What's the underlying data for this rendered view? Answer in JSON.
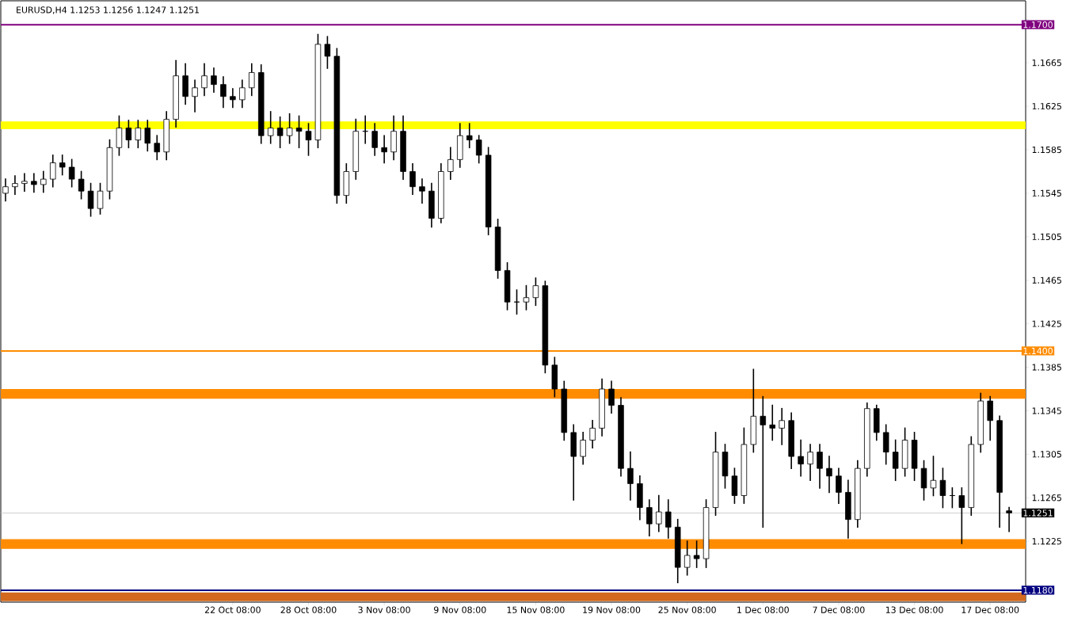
{
  "chart_data": {
    "type": "candlestick",
    "title": "EURUSD,H4  1.1253 1.1256 1.1247 1.1251",
    "categories": [
      null,
      null,
      null,
      null,
      null,
      null,
      null,
      null,
      null,
      null,
      null,
      null,
      null,
      null,
      null,
      null,
      null,
      null,
      null,
      null,
      null,
      null,
      null,
      null,
      "22 Oct 08:00",
      null,
      null,
      null,
      null,
      null,
      null,
      null,
      "28 Oct 08:00",
      null,
      null,
      null,
      null,
      null,
      null,
      null,
      "3 Nov 08:00",
      null,
      null,
      null,
      null,
      null,
      null,
      null,
      "9 Nov 08:00",
      null,
      null,
      null,
      null,
      null,
      null,
      null,
      "15 Nov 08:00",
      null,
      null,
      null,
      null,
      null,
      null,
      null,
      "19 Nov 08:00",
      null,
      null,
      null,
      null,
      null,
      null,
      null,
      "25 Nov 08:00",
      null,
      null,
      null,
      null,
      null,
      null,
      null,
      "1 Dec 08:00",
      null,
      null,
      null,
      null,
      null,
      null,
      null,
      "7 Dec 08:00",
      null,
      null,
      null,
      null,
      null,
      null,
      null,
      "13 Dec 08:00",
      null,
      null,
      null,
      null,
      null,
      null,
      null,
      "17 Dec 08:00",
      null,
      null
    ],
    "ohlc": [
      [
        1.1545,
        1.1558,
        1.1538,
        1.1551
      ],
      [
        1.1551,
        1.1561,
        1.1544,
        1.1554
      ],
      [
        1.1554,
        1.1563,
        1.1547,
        1.1556
      ],
      [
        1.1556,
        1.1563,
        1.1546,
        1.1553
      ],
      [
        1.1553,
        1.1565,
        1.1546,
        1.1558
      ],
      [
        1.1558,
        1.158,
        1.1551,
        1.1573
      ],
      [
        1.1573,
        1.158,
        1.1562,
        1.1569
      ],
      [
        1.1569,
        1.1576,
        1.1551,
        1.1558
      ],
      [
        1.1558,
        1.1565,
        1.154,
        1.1547
      ],
      [
        1.1547,
        1.1554,
        1.1524,
        1.1531
      ],
      [
        1.1531,
        1.1554,
        1.1526,
        1.1547
      ],
      [
        1.1547,
        1.1594,
        1.154,
        1.1587
      ],
      [
        1.1587,
        1.1616,
        1.158,
        1.1605
      ],
      [
        1.1605,
        1.1612,
        1.1587,
        1.1594
      ],
      [
        1.1594,
        1.1612,
        1.1587,
        1.1605
      ],
      [
        1.1605,
        1.1612,
        1.1584,
        1.1591
      ],
      [
        1.1591,
        1.1598,
        1.1576,
        1.1583
      ],
      [
        1.1583,
        1.162,
        1.1576,
        1.1613
      ],
      [
        1.1613,
        1.1667,
        1.1606,
        1.1653
      ],
      [
        1.1653,
        1.1664,
        1.1627,
        1.1634
      ],
      [
        1.1634,
        1.1649,
        1.162,
        1.1642
      ],
      [
        1.1642,
        1.1664,
        1.1635,
        1.1653
      ],
      [
        1.1653,
        1.166,
        1.1638,
        1.1645
      ],
      [
        1.1645,
        1.1652,
        1.1624,
        1.1634
      ],
      [
        1.1634,
        1.1641,
        1.1624,
        1.1631
      ],
      [
        1.1631,
        1.1649,
        1.1624,
        1.1642
      ],
      [
        1.1642,
        1.1664,
        1.1635,
        1.1656
      ],
      [
        1.1656,
        1.1663,
        1.1591,
        1.1598
      ],
      [
        1.1598,
        1.162,
        1.1591,
        1.1605
      ],
      [
        1.1605,
        1.1615,
        1.1587,
        1.1598
      ],
      [
        1.1598,
        1.1618,
        1.1591,
        1.1605
      ],
      [
        1.1605,
        1.1616,
        1.1587,
        1.1602
      ],
      [
        1.1602,
        1.1609,
        1.158,
        1.1594
      ],
      [
        1.1594,
        1.1691,
        1.1587,
        1.1682
      ],
      [
        1.1682,
        1.1689,
        1.166,
        1.1671
      ],
      [
        1.1671,
        1.1678,
        1.1536,
        1.1543
      ],
      [
        1.1543,
        1.1572,
        1.1536,
        1.1565
      ],
      [
        1.1565,
        1.1613,
        1.1558,
        1.1602
      ],
      [
        1.1602,
        1.1616,
        1.1591,
        1.1602
      ],
      [
        1.1602,
        1.1609,
        1.158,
        1.1587
      ],
      [
        1.1587,
        1.1598,
        1.1573,
        1.1583
      ],
      [
        1.1583,
        1.1616,
        1.1576,
        1.1602
      ],
      [
        1.1602,
        1.1616,
        1.1558,
        1.1565
      ],
      [
        1.1565,
        1.1572,
        1.1544,
        1.1551
      ],
      [
        1.1551,
        1.1558,
        1.1536,
        1.1547
      ],
      [
        1.1547,
        1.1554,
        1.1514,
        1.1522
      ],
      [
        1.1522,
        1.1572,
        1.1518,
        1.1565
      ],
      [
        1.1565,
        1.1587,
        1.1558,
        1.1576
      ],
      [
        1.1576,
        1.1609,
        1.1569,
        1.1598
      ],
      [
        1.1598,
        1.1609,
        1.1587,
        1.1594
      ],
      [
        1.1594,
        1.1598,
        1.1573,
        1.158
      ],
      [
        1.158,
        1.1587,
        1.1507,
        1.1514
      ],
      [
        1.1514,
        1.1521,
        1.1467,
        1.1474
      ],
      [
        1.1474,
        1.1481,
        1.1438,
        1.1445
      ],
      [
        1.1445,
        1.1456,
        1.1434,
        1.1445
      ],
      [
        1.1445,
        1.146,
        1.1438,
        1.1449
      ],
      [
        1.1449,
        1.1467,
        1.1442,
        1.146
      ],
      [
        1.146,
        1.1464,
        1.138,
        1.1387
      ],
      [
        1.1387,
        1.1394,
        1.1358,
        1.1365
      ],
      [
        1.1365,
        1.1372,
        1.1318,
        1.1325
      ],
      [
        1.1325,
        1.1332,
        1.1263,
        1.1303
      ],
      [
        1.1303,
        1.1325,
        1.1296,
        1.1318
      ],
      [
        1.1318,
        1.1336,
        1.1311,
        1.1329
      ],
      [
        1.1329,
        1.1374,
        1.1322,
        1.1365
      ],
      [
        1.1365,
        1.1372,
        1.1343,
        1.135
      ],
      [
        1.135,
        1.1357,
        1.1285,
        1.1292
      ],
      [
        1.1292,
        1.1307,
        1.1263,
        1.1278
      ],
      [
        1.1278,
        1.1285,
        1.1245,
        1.1256
      ],
      [
        1.1256,
        1.1263,
        1.123,
        1.1241
      ],
      [
        1.1241,
        1.1267,
        1.1234,
        1.1252
      ],
      [
        1.1252,
        1.1263,
        1.1228,
        1.1238
      ],
      [
        1.1238,
        1.1245,
        1.1187,
        1.1201
      ],
      [
        1.1201,
        1.1225,
        1.1194,
        1.1212
      ],
      [
        1.1212,
        1.1225,
        1.1201,
        1.1209
      ],
      [
        1.1209,
        1.1263,
        1.1201,
        1.1256
      ],
      [
        1.1256,
        1.1325,
        1.1249,
        1.1307
      ],
      [
        1.1307,
        1.1314,
        1.1274,
        1.1285
      ],
      [
        1.1285,
        1.1292,
        1.126,
        1.1267
      ],
      [
        1.1267,
        1.1329,
        1.126,
        1.1314
      ],
      [
        1.1314,
        1.1383,
        1.1307,
        1.134
      ],
      [
        1.134,
        1.1358,
        1.1238,
        1.1332
      ],
      [
        1.1332,
        1.135,
        1.1318,
        1.1329
      ],
      [
        1.1329,
        1.1347,
        1.1314,
        1.1336
      ],
      [
        1.1336,
        1.1343,
        1.1292,
        1.1303
      ],
      [
        1.1303,
        1.1318,
        1.1285,
        1.1296
      ],
      [
        1.1296,
        1.1314,
        1.1281,
        1.1307
      ],
      [
        1.1307,
        1.1314,
        1.1274,
        1.1292
      ],
      [
        1.1292,
        1.1303,
        1.127,
        1.1285
      ],
      [
        1.1285,
        1.1292,
        1.126,
        1.127
      ],
      [
        1.127,
        1.1281,
        1.1228,
        1.1245
      ],
      [
        1.1245,
        1.1299,
        1.1238,
        1.1292
      ],
      [
        1.1292,
        1.1352,
        1.1285,
        1.1347
      ],
      [
        1.1347,
        1.135,
        1.1318,
        1.1325
      ],
      [
        1.1325,
        1.1332,
        1.1296,
        1.1307
      ],
      [
        1.1307,
        1.1318,
        1.1281,
        1.1292
      ],
      [
        1.1292,
        1.1329,
        1.1285,
        1.1318
      ],
      [
        1.1318,
        1.1325,
        1.1281,
        1.1292
      ],
      [
        1.1292,
        1.1299,
        1.1263,
        1.1274
      ],
      [
        1.1274,
        1.1303,
        1.1267,
        1.1281
      ],
      [
        1.1281,
        1.1292,
        1.1256,
        1.1267
      ],
      [
        1.1267,
        1.1274,
        1.1256,
        1.1267
      ],
      [
        1.1267,
        1.1274,
        1.1223,
        1.1256
      ],
      [
        1.1256,
        1.1321,
        1.1249,
        1.1314
      ],
      [
        1.1314,
        1.1361,
        1.1307,
        1.1354
      ],
      [
        1.1354,
        1.1358,
        1.1318,
        1.1336
      ],
      [
        1.1336,
        1.134,
        1.1238,
        1.127
      ],
      [
        1.1253,
        1.1256,
        1.1234,
        1.1251
      ]
    ],
    "ylim": [
      1.1169,
      1.1722
    ],
    "yticks": [
      {
        "value": 1.1185,
        "label": null
      },
      1.1225,
      1.1265,
      1.1305,
      1.1345,
      1.1385,
      1.1425,
      1.1465,
      1.1505,
      1.1545,
      1.1585,
      1.1625,
      1.1665,
      {
        "value": 1.1705,
        "label": null
      }
    ],
    "ref_lines": [
      {
        "axis": "y",
        "value": 1.17,
        "label": "1.1700",
        "color": "#800080"
      },
      {
        "axis": "y",
        "value": 1.14,
        "label": "1.1400",
        "color": "#ff8c00"
      },
      {
        "axis": "y",
        "value": 1.1251,
        "label": "1.1251",
        "color": "#c0c0c0"
      },
      {
        "axis": "y",
        "value": 1.118,
        "label": "1.1180",
        "color": "#000080"
      }
    ],
    "bands": [
      {
        "axis": "y",
        "from": 1.1604,
        "to": 1.1611,
        "color": "#ffff00"
      },
      {
        "axis": "y",
        "from": 1.1356,
        "to": 1.1365,
        "color": "#ff8c00"
      },
      {
        "axis": "y",
        "from": 1.1218,
        "to": 1.1227,
        "color": "#ff8c00"
      },
      {
        "axis": "y",
        "from": 1.117,
        "to": 1.1178,
        "color": "#d2691e"
      }
    ]
  }
}
